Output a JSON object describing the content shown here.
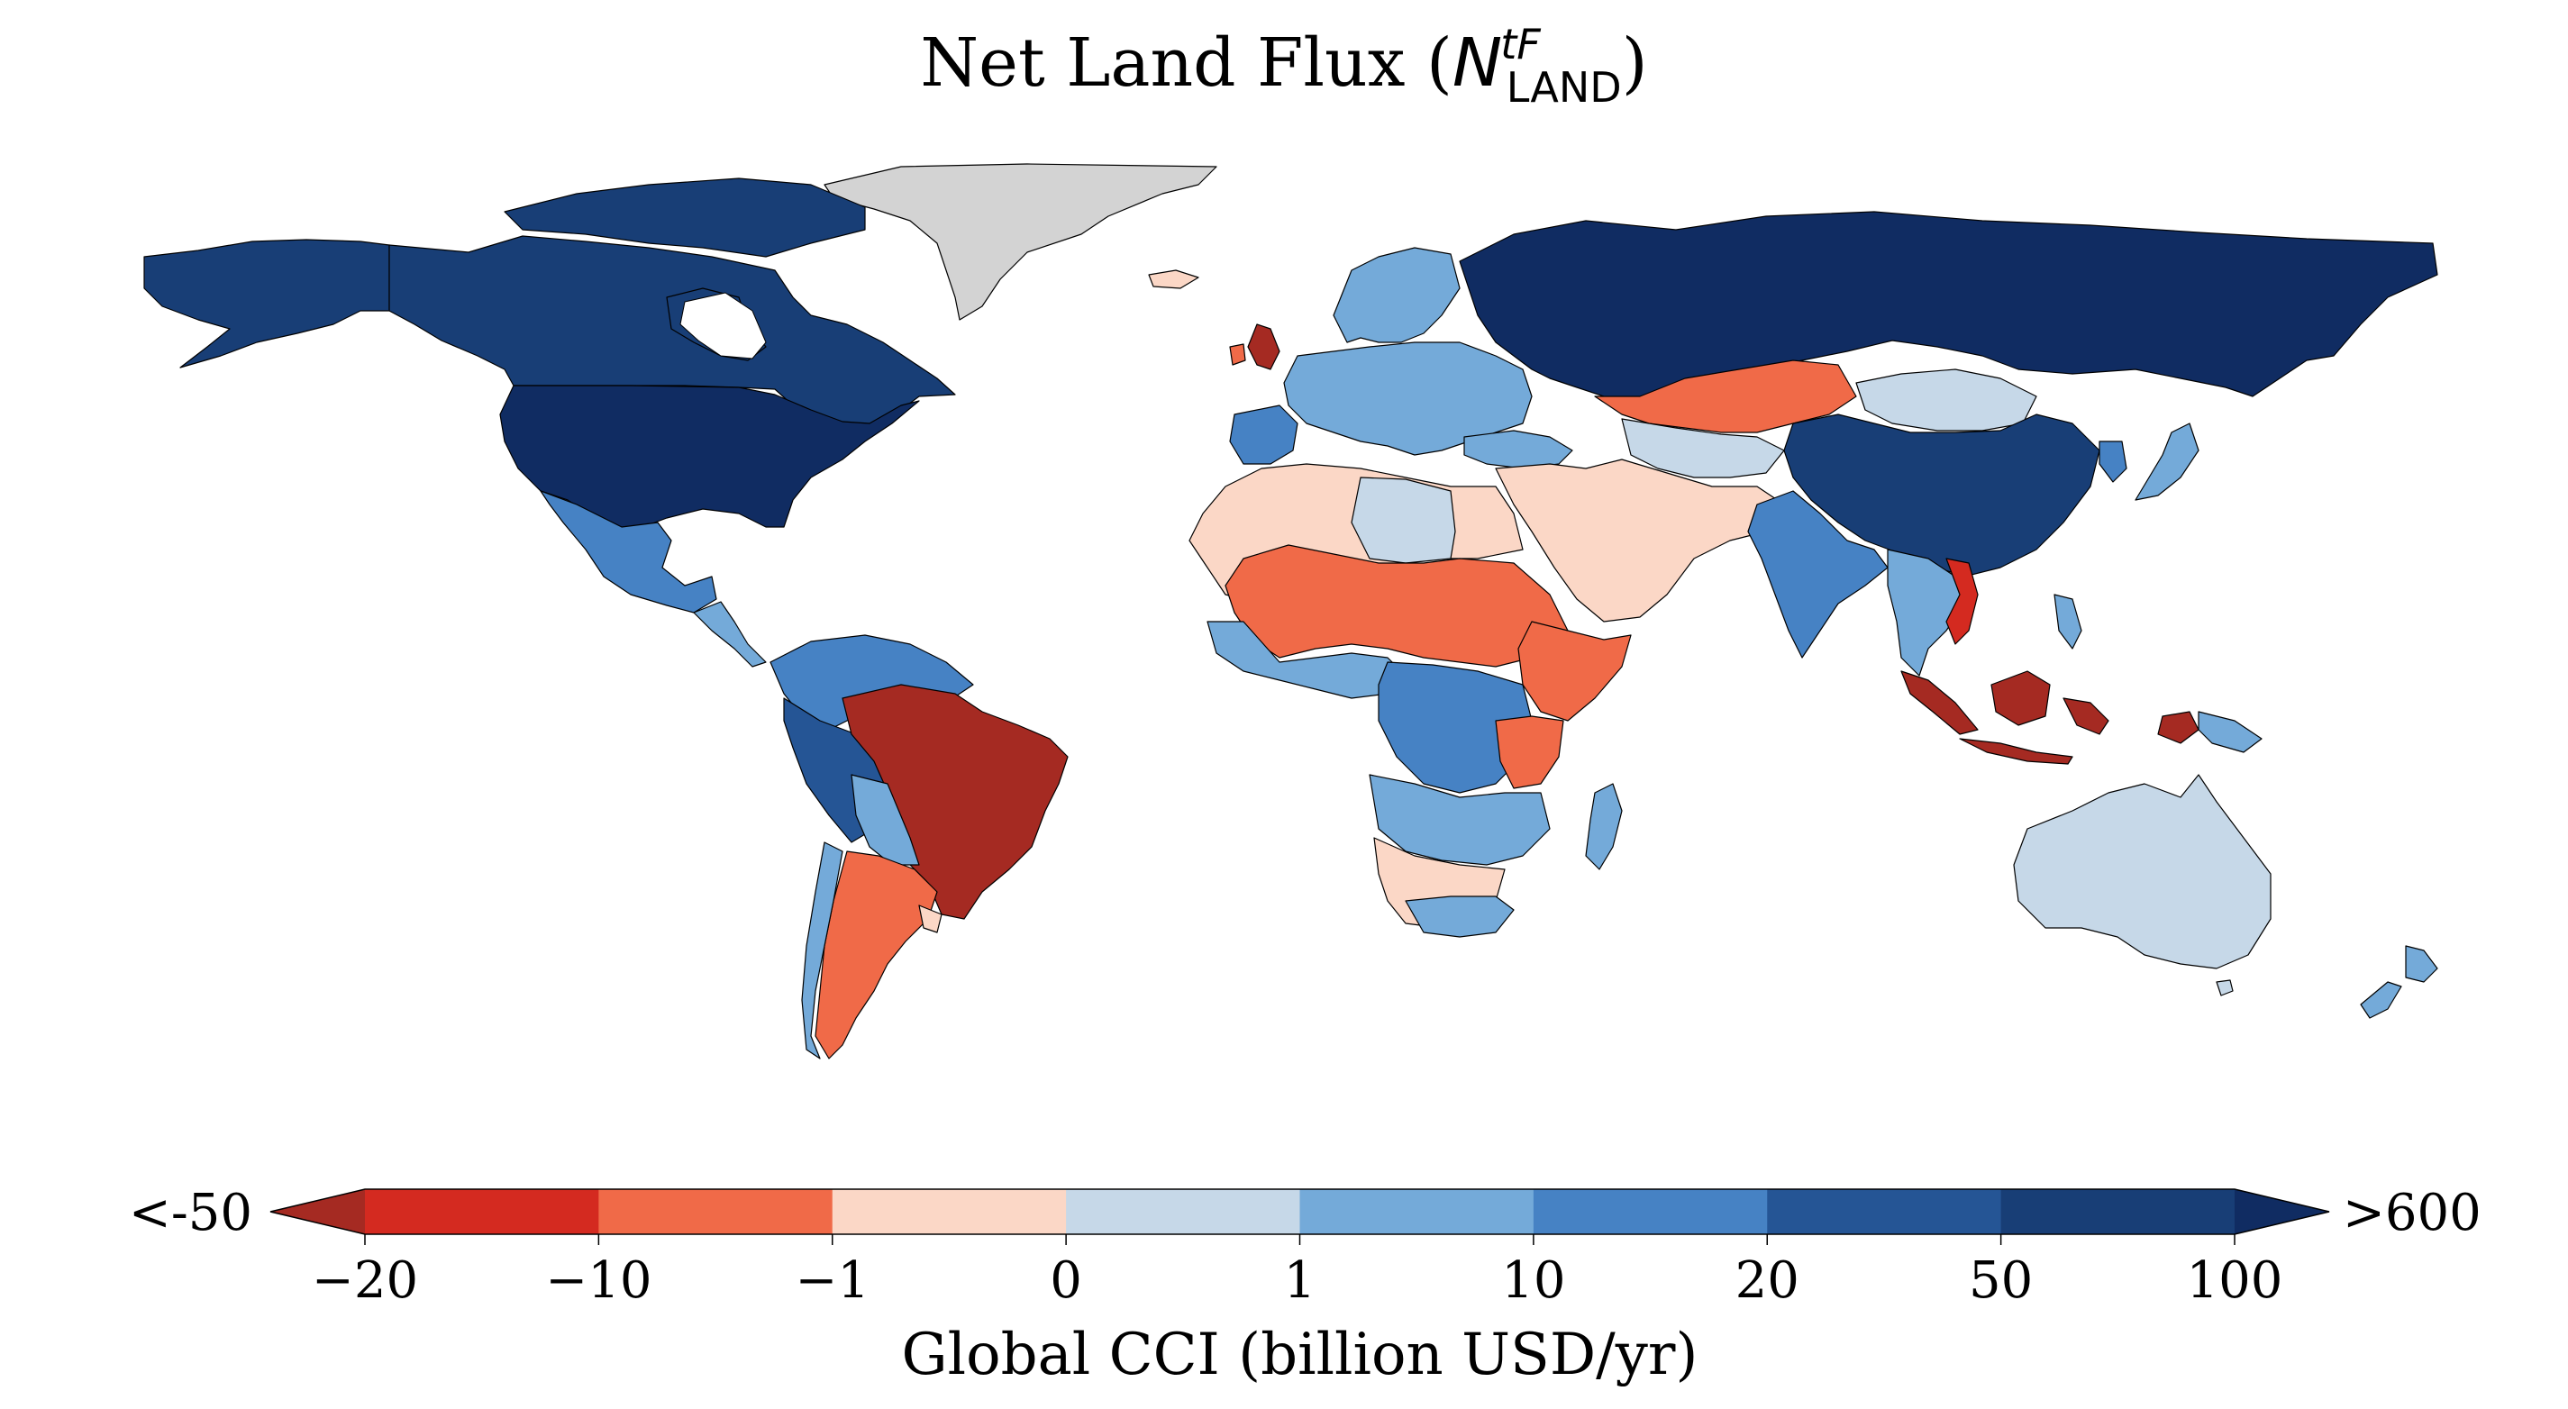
{
  "title": {
    "main": "Net Land Flux (",
    "symbol": "N",
    "superscript": "tF",
    "subscript": "LAND",
    "close": ")"
  },
  "colorbar": {
    "label": "Global CCI (billion USD/yr)",
    "under_label": "<-50",
    "over_label": ">600",
    "ticks": [
      "−20",
      "−10",
      "−1",
      "0",
      "1",
      "10",
      "20",
      "50",
      "100"
    ],
    "bins": [
      {
        "range": "<-50",
        "color": "#a52a22"
      },
      {
        "range": "-20 to -10",
        "color": "#d42a20"
      },
      {
        "range": "-10 to -1",
        "color": "#f06a48"
      },
      {
        "range": "-1 to 0",
        "color": "#fbd7c6"
      },
      {
        "range": "0 to 1",
        "color": "#c6d8e8"
      },
      {
        "range": "1 to 10",
        "color": "#74aad9"
      },
      {
        "range": "10 to 20",
        "color": "#4682c4"
      },
      {
        "range": "20 to 50",
        "color": "#255595"
      },
      {
        "range": "50 to 100",
        "color": "#183e76"
      },
      {
        "range": ">600",
        "color": "#102c62"
      }
    ]
  },
  "map_colors": {
    "no_data": "#d3d3d3",
    "border": "#000000",
    "ocean": "#ffffff"
  }
}
